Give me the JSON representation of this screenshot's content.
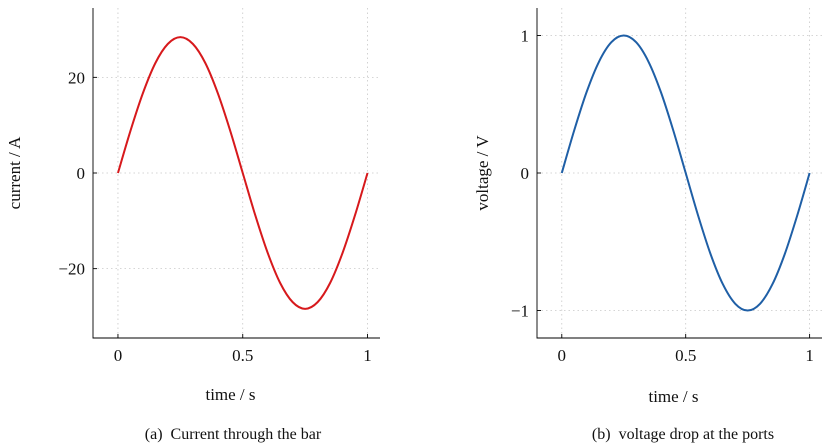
{
  "chart_data": [
    {
      "type": "line",
      "caption": "(a)  Current through the bar",
      "xlabel": "time / s",
      "ylabel": "current / A",
      "xlim": [
        -0.1,
        1.05
      ],
      "ylim": [
        -34.5,
        34.5
      ],
      "xticks": [
        0,
        0.5,
        1
      ],
      "xtick_labels": [
        "0",
        "0.5",
        "1"
      ],
      "yticks": [
        -20,
        0,
        20
      ],
      "ytick_labels": [
        "−20",
        "0",
        "20"
      ],
      "grid": true,
      "series": [
        {
          "color": "#d7191c",
          "x": [
            0,
            0.05,
            0.1,
            0.15,
            0.2,
            0.25,
            0.3,
            0.35,
            0.4,
            0.45,
            0.5,
            0.55,
            0.6,
            0.65,
            0.7,
            0.75,
            0.8,
            0.85,
            0.9,
            0.95,
            1
          ],
          "y": [
            0,
            8.8,
            16.7,
            23.0,
            27.0,
            28.4,
            27.0,
            23.0,
            16.7,
            8.8,
            0,
            -8.8,
            -16.7,
            -23.0,
            -27.0,
            -28.4,
            -27.0,
            -23.0,
            -16.7,
            -8.8,
            0
          ]
        }
      ]
    },
    {
      "type": "line",
      "caption": "(b)  voltage drop at the ports",
      "xlabel": "time / s",
      "ylabel": "voltage / V",
      "xlim": [
        -0.1,
        1.05
      ],
      "ylim": [
        -1.2,
        1.2
      ],
      "xticks": [
        0,
        0.5,
        1
      ],
      "xtick_labels": [
        "0",
        "0.5",
        "1"
      ],
      "yticks": [
        -1,
        0,
        1
      ],
      "ytick_labels": [
        "−1",
        "0",
        "1"
      ],
      "grid": true,
      "series": [
        {
          "color": "#1f5fa6",
          "x": [
            0,
            0.05,
            0.1,
            0.15,
            0.2,
            0.25,
            0.3,
            0.35,
            0.4,
            0.45,
            0.5,
            0.55,
            0.6,
            0.65,
            0.7,
            0.75,
            0.8,
            0.85,
            0.9,
            0.95,
            1
          ],
          "y": [
            0,
            0.309,
            0.588,
            0.809,
            0.951,
            1.0,
            0.951,
            0.809,
            0.588,
            0.309,
            0,
            -0.309,
            -0.588,
            -0.809,
            -0.951,
            -1.0,
            -0.951,
            -0.809,
            -0.588,
            -0.309,
            0
          ]
        }
      ]
    }
  ]
}
